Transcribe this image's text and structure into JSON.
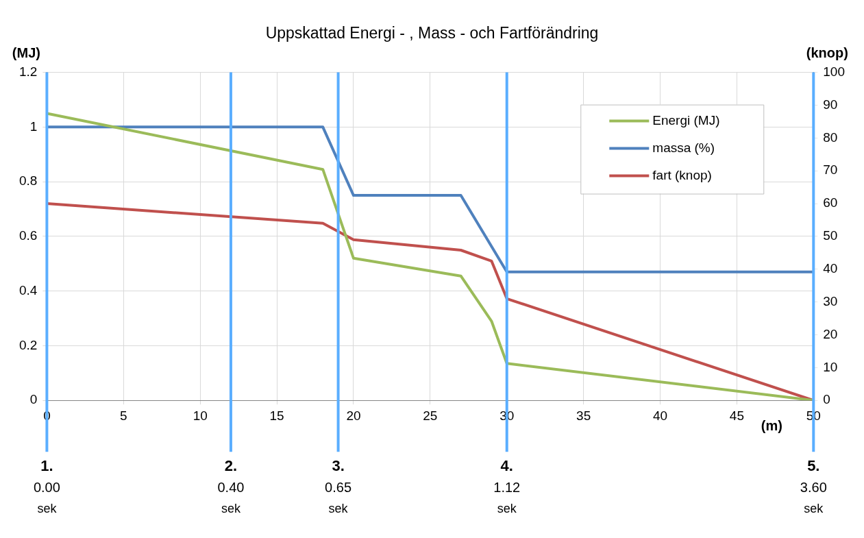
{
  "chart_data": {
    "type": "line",
    "title": "Uppskattad Energi - , Mass - och Fartförändring",
    "xlabel": "(m)",
    "ylabel": "(MJ)",
    "y2label": "(knop)",
    "xlim": [
      0,
      50
    ],
    "xticks": [
      0,
      5,
      10,
      15,
      20,
      25,
      30,
      35,
      40,
      45,
      50
    ],
    "ylim": [
      0,
      1.2
    ],
    "yticks": [
      0,
      0.2,
      0.4,
      0.6,
      0.8,
      1,
      1.2
    ],
    "y2lim": [
      0,
      100
    ],
    "y2ticks": [
      0,
      10,
      20,
      30,
      40,
      50,
      60,
      70,
      80,
      90,
      100
    ],
    "grid": true,
    "legend": "top right",
    "marker": "none",
    "line_style": "solid",
    "series": [
      {
        "name": "Energi (MJ)",
        "color": "#9bbb59",
        "x": [
          0,
          18,
          20,
          27,
          29,
          30,
          50
        ],
        "values": [
          1.05,
          0.845,
          0.52,
          0.455,
          0.29,
          0.135,
          0
        ]
      },
      {
        "name": "massa (%)",
        "color": "#4f81bd",
        "x": [
          0,
          18,
          20,
          27,
          30,
          50
        ],
        "values": [
          1,
          1,
          0.75,
          0.75,
          0.47,
          0.47
        ]
      },
      {
        "name": "fart (knop)",
        "color": "#c0504d",
        "axis": "y2",
        "x": [
          0,
          18,
          20,
          27,
          29,
          30,
          50
        ],
        "values": [
          60,
          54,
          49,
          45.8,
          42.5,
          31,
          0
        ]
      }
    ],
    "ref_lines": [
      {
        "axis": "x",
        "value": 0,
        "label": "1.\n0.00\nsek",
        "color": "#5aaeff"
      },
      {
        "axis": "x",
        "value": 12,
        "label": "2.\n0.40\nsek",
        "color": "#5aaeff"
      },
      {
        "axis": "x",
        "value": 19,
        "label": "3.\n0.65\nsek",
        "color": "#5aaeff"
      },
      {
        "axis": "x",
        "value": 30,
        "label": "4.\n1.12\nsek",
        "color": "#5aaeff"
      },
      {
        "axis": "x",
        "value": 50,
        "label": "5.\n3.60\nsek",
        "color": "#5aaeff"
      }
    ]
  }
}
